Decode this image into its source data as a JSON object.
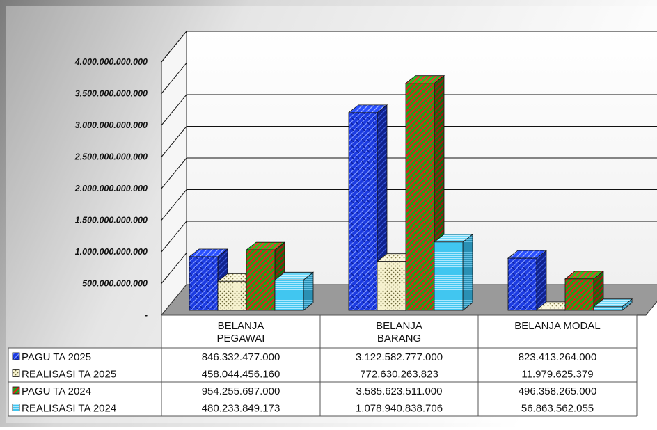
{
  "chart_data": {
    "type": "bar",
    "categories": [
      [
        "BELANJA",
        "PEGAWAI"
      ],
      [
        "BELANJA",
        "BARANG"
      ],
      [
        "BELANJA MODAL"
      ]
    ],
    "ylim": [
      0,
      4000000000000
    ],
    "ytick_values": [
      0,
      500000000000,
      1000000000000,
      1500000000000,
      2000000000000,
      2500000000000,
      3000000000000,
      3500000000000,
      4000000000000
    ],
    "ytick_labels": [
      "-",
      "500.000.000.000",
      "1.000.000.000.000",
      "1.500.000.000.000",
      "2.000.000.000.000",
      "2.500.000.000.000",
      "3.000.000.000.000",
      "3.500.000.000.000",
      "4.000.000.000.000"
    ],
    "grid": true,
    "legend": "data-table",
    "series": [
      {
        "name": "PAGU TA 2025",
        "values": [
          846332477000,
          3122582777000,
          823413264000
        ],
        "labels": [
          "846.332.477.000",
          "3.122.582.777.000",
          "823.413.264.000"
        ],
        "color": "#1c3be0",
        "pattern": "weave"
      },
      {
        "name": "REALISASI  TA  2025",
        "values": [
          458044456160,
          772630263823,
          11979625379
        ],
        "labels": [
          "458.044.456.160",
          "772.630.263.823",
          "11.979.625.379"
        ],
        "color": "#f4f0c8",
        "pattern": "dots"
      },
      {
        "name": "PAGU TA 2024",
        "values": [
          954255697000,
          3585623511000,
          496358265000
        ],
        "labels": [
          "954.255.697.000",
          "3.585.623.511.000",
          "496.358.265.000"
        ],
        "color": "#19a51c",
        "pattern": "diagonal-red"
      },
      {
        "name": "REALISASI  TA  2024",
        "values": [
          480233849173,
          1078940838706,
          56863562055
        ],
        "labels": [
          "480.233.849.173",
          "1.078.940.838.706",
          "56.863.562.055"
        ],
        "color": "#3fc4ef",
        "pattern": "horizontal-lines"
      }
    ]
  }
}
